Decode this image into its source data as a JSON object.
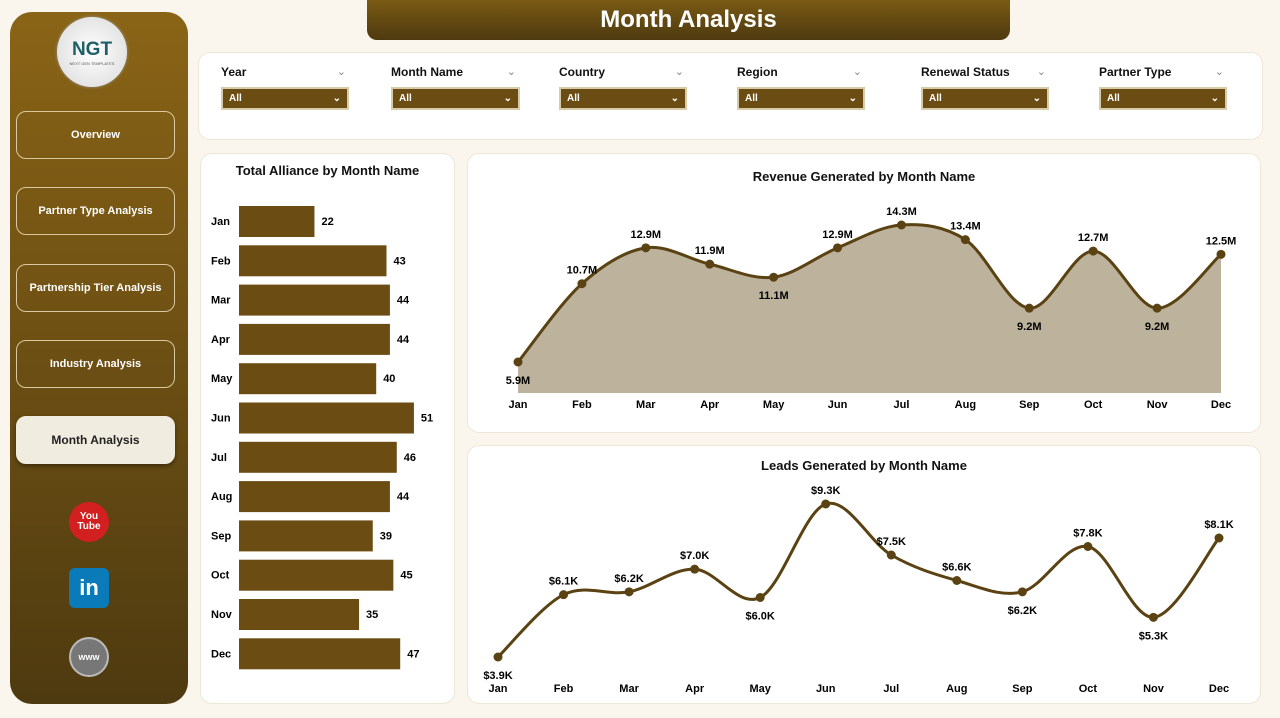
{
  "title": "Month Analysis",
  "logo": {
    "text": "NGT",
    "subtitle": "NEXT GEN TEMPLATES"
  },
  "sidebar": {
    "items": [
      {
        "label": "Overview"
      },
      {
        "label": "Partner Type Analysis"
      },
      {
        "label": "Partnership Tier Analysis"
      },
      {
        "label": "Industry Analysis"
      },
      {
        "label": "Month Analysis",
        "active": true
      }
    ],
    "social": [
      {
        "icon": "youtube-icon",
        "label": "You Tube",
        "color": "#d21f1f"
      },
      {
        "icon": "linkedin-icon",
        "label": "in",
        "color": "#0a7ab8"
      },
      {
        "icon": "globe-icon",
        "label": "www",
        "color": "#777777"
      }
    ]
  },
  "filters": [
    {
      "label": "Year",
      "value": "All"
    },
    {
      "label": "Month Name",
      "value": "All"
    },
    {
      "label": "Country",
      "value": "All"
    },
    {
      "label": "Region",
      "value": "All"
    },
    {
      "label": "Renewal Status",
      "value": "All"
    },
    {
      "label": "Partner Type",
      "value": "All"
    }
  ],
  "colors": {
    "accent": "#6b4d14",
    "area": "#bdb29c",
    "line": "#5a4212"
  },
  "chart_data": [
    {
      "type": "bar",
      "title": "Total Alliance by Month Name",
      "categories": [
        "Jan",
        "Feb",
        "Mar",
        "Apr",
        "May",
        "Jun",
        "Jul",
        "Aug",
        "Sep",
        "Oct",
        "Nov",
        "Dec"
      ],
      "values": [
        22,
        43,
        44,
        44,
        40,
        51,
        46,
        44,
        39,
        45,
        35,
        47
      ],
      "orientation": "horizontal"
    },
    {
      "type": "area",
      "title": "Revenue Generated by Month Name",
      "categories": [
        "Jan",
        "Feb",
        "Mar",
        "Apr",
        "May",
        "Jun",
        "Jul",
        "Aug",
        "Sep",
        "Oct",
        "Nov",
        "Dec"
      ],
      "values": [
        5.9,
        10.7,
        12.9,
        11.9,
        11.1,
        12.9,
        14.3,
        13.4,
        9.2,
        12.7,
        9.2,
        12.5
      ],
      "labels": [
        "5.9M",
        "10.7M",
        "12.9M",
        "11.9M",
        "11.1M",
        "12.9M",
        "14.3M",
        "13.4M",
        "9.2M",
        "12.7M",
        "9.2M",
        "12.5M"
      ],
      "unit": "M"
    },
    {
      "type": "line",
      "title": "Leads Generated by Month Name",
      "categories": [
        "Jan",
        "Feb",
        "Mar",
        "Apr",
        "May",
        "Jun",
        "Jul",
        "Aug",
        "Sep",
        "Oct",
        "Nov",
        "Dec"
      ],
      "values": [
        3.9,
        6.1,
        6.2,
        7.0,
        6.0,
        9.3,
        7.5,
        6.6,
        6.2,
        7.8,
        5.3,
        8.1
      ],
      "labels": [
        "$3.9K",
        "$6.1K",
        "$6.2K",
        "$7.0K",
        "$6.0K",
        "$9.3K",
        "$7.5K",
        "$6.6K",
        "$6.2K",
        "$7.8K",
        "$5.3K",
        "$8.1K"
      ],
      "unit": "K"
    }
  ]
}
